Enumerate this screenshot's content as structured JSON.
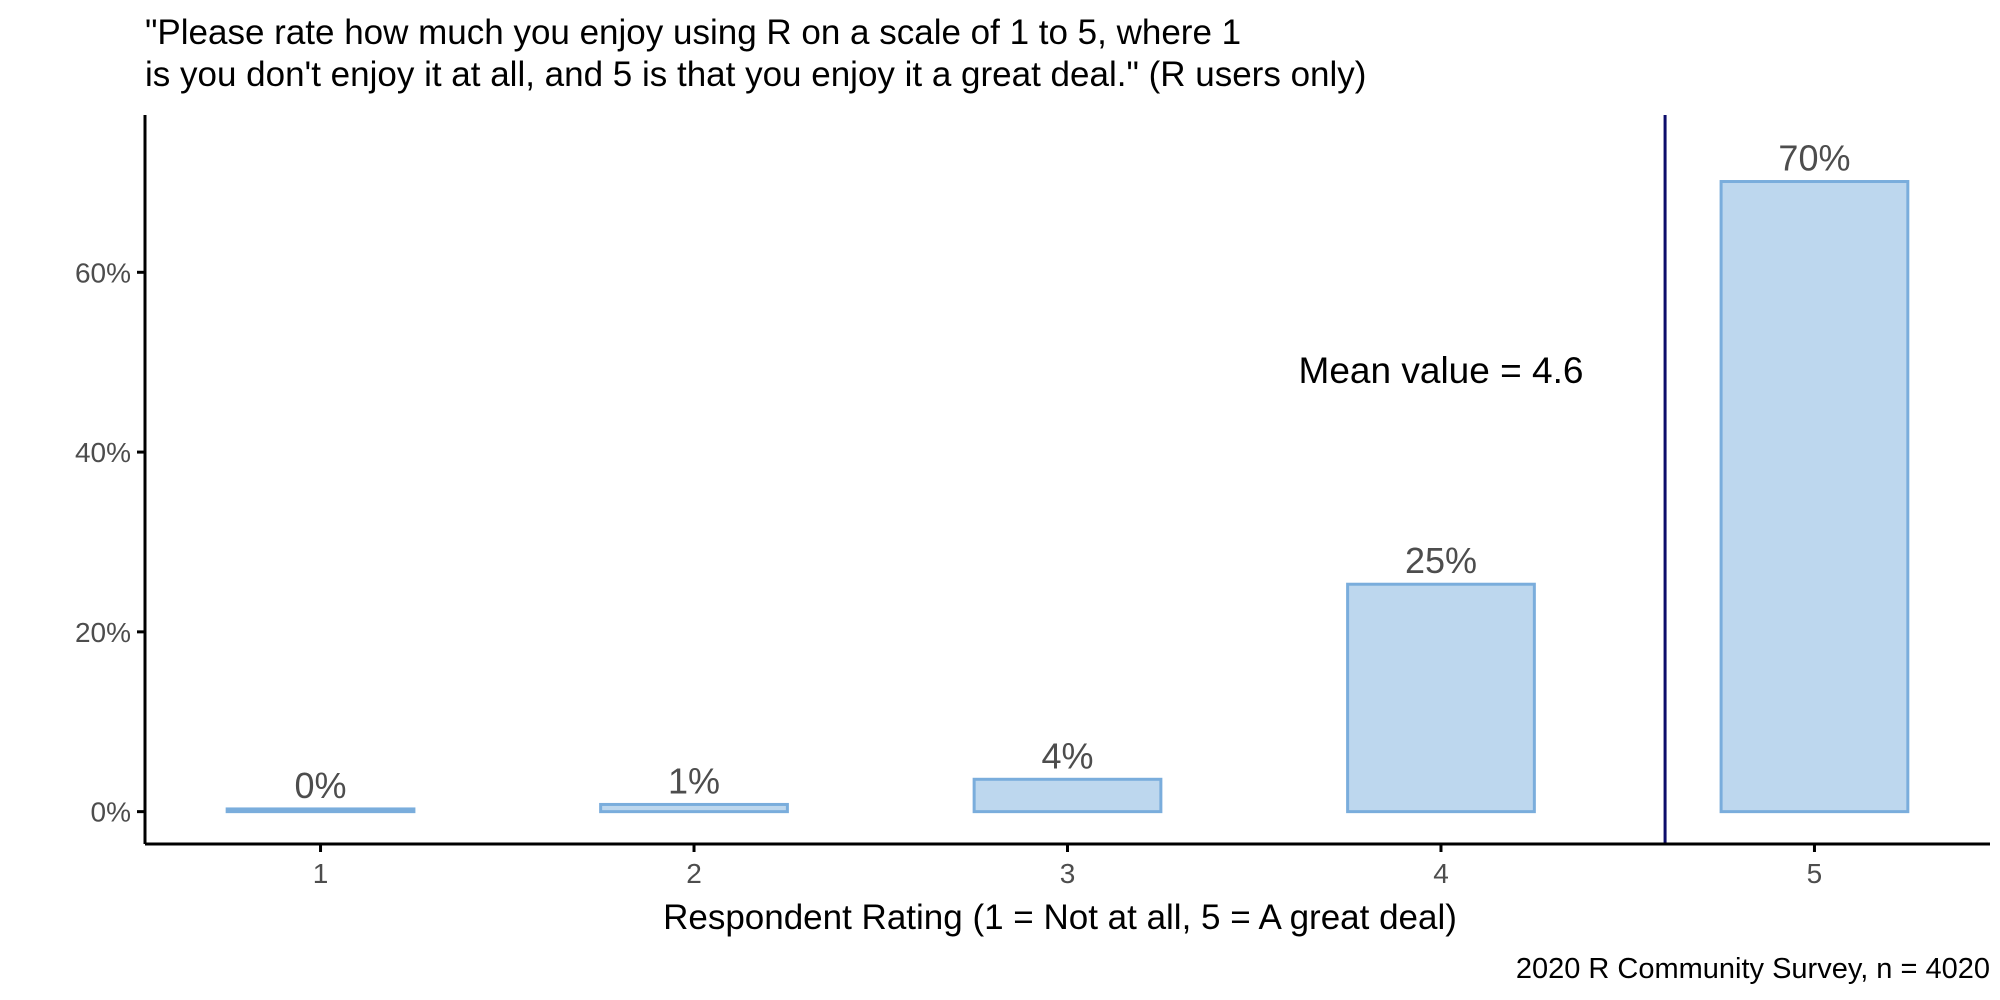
{
  "chart_data": {
    "type": "bar",
    "title_lines": [
      "\"Please rate how much you enjoy using R on a scale of 1 to 5, where 1",
      "is you don't enjoy it at all, and 5 is that you enjoy it a great deal.\" (R users only)"
    ],
    "categories": [
      "1",
      "2",
      "3",
      "4",
      "5"
    ],
    "values": [
      0.3,
      0.8,
      3.6,
      25.3,
      70.1
    ],
    "data_labels": [
      "0%",
      "1%",
      "4%",
      "25%",
      "70%"
    ],
    "xlabel": "Respondent Rating (1 = Not at all, 5 = A great deal)",
    "ylabel": "",
    "ylim": [
      -3.6,
      77.5
    ],
    "yticks": [
      0,
      20,
      40,
      60
    ],
    "ytick_labels": [
      "0%",
      "20%",
      "40%",
      "60%"
    ],
    "xlim": [
      0.53,
      5.47
    ],
    "mean_line": {
      "value": 4.6,
      "label": "Mean value = 4.6",
      "color": "#0d0d6b"
    },
    "caption": "2020 R Community Survey, n = 4020",
    "grid": false,
    "legend": "none",
    "colors": {
      "bar_fill": "#bdd7ee",
      "bar_stroke": "#7aaddc",
      "axis": "#000000"
    }
  }
}
